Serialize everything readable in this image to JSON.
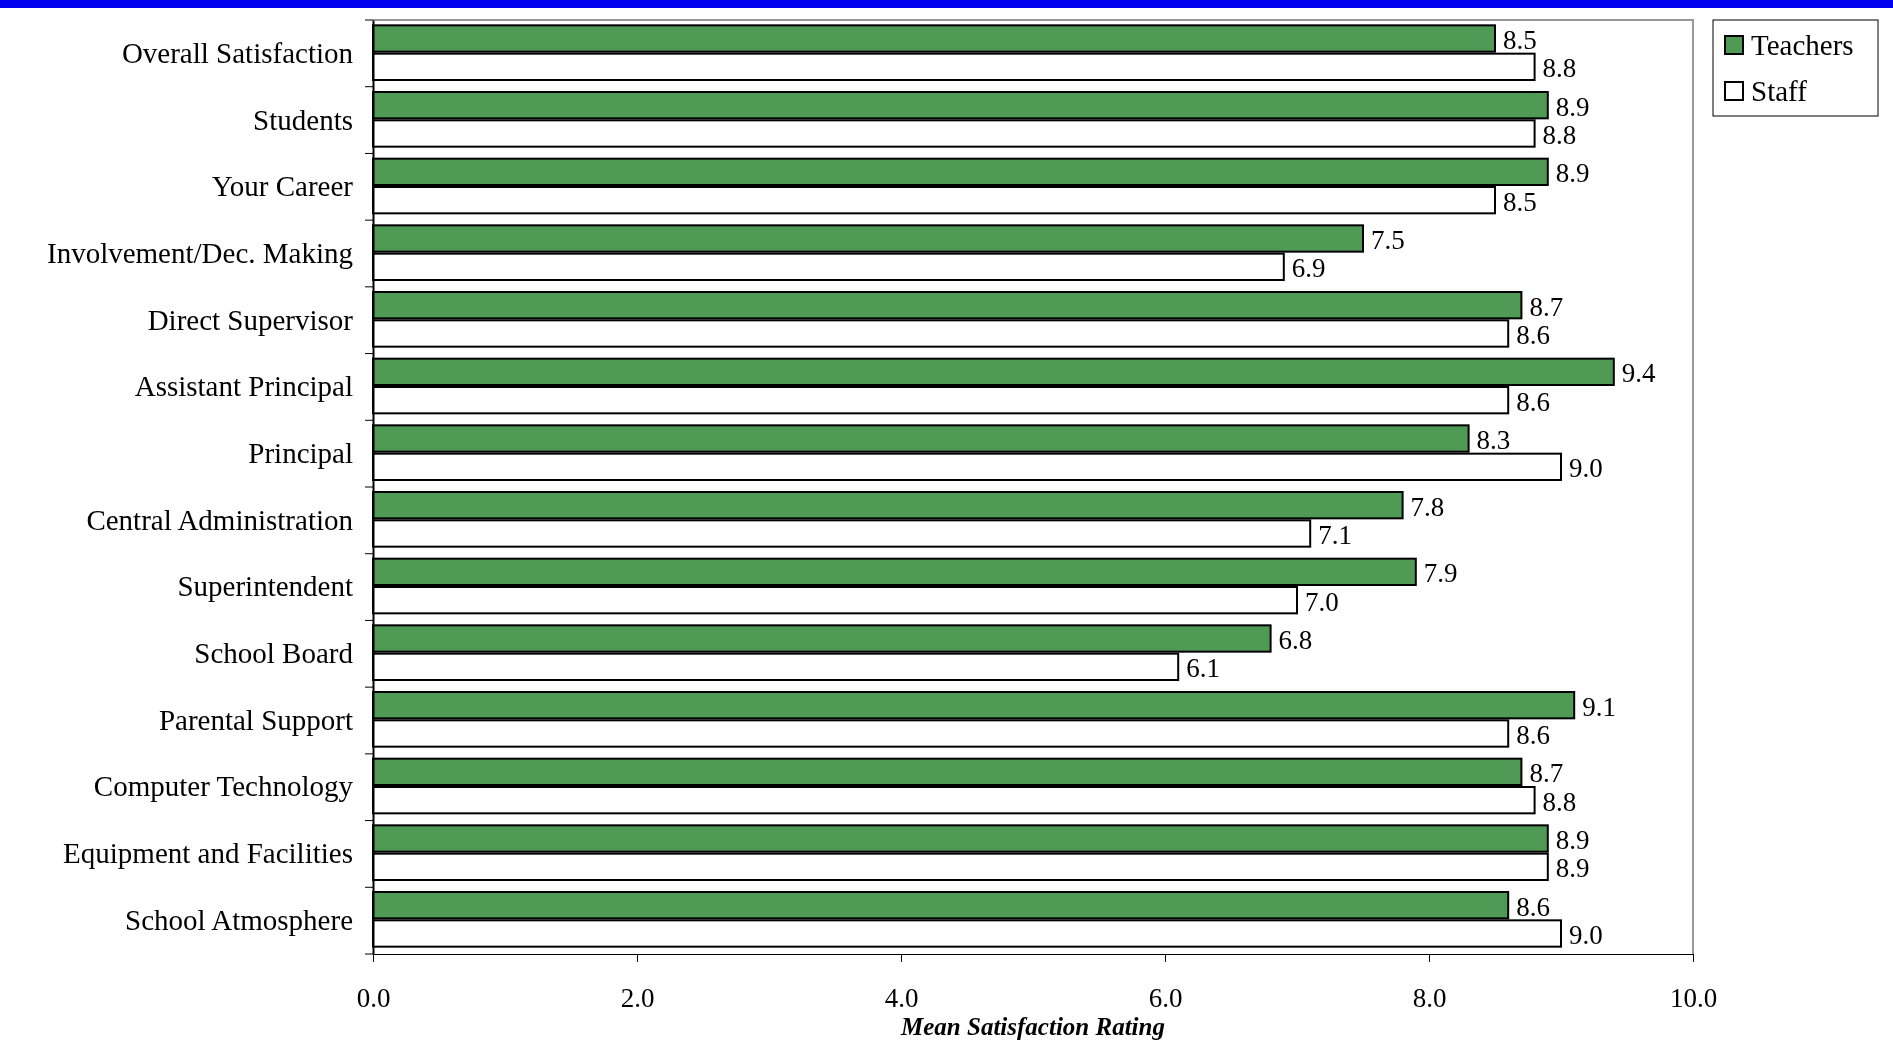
{
  "chart_data": {
    "type": "bar",
    "orientation": "horizontal",
    "xlabel": "Mean Satisfaction Rating",
    "categories": [
      "Overall Satisfaction",
      "Students",
      "Your Career",
      "Involvement/Dec. Making",
      "Direct Supervisor",
      "Assistant Principal",
      "Principal",
      "Central Administration",
      "Superintendent",
      "School  Board",
      "Parental Support",
      "Computer Technology",
      "Equipment and Facilities",
      "School Atmosphere"
    ],
    "series": [
      {
        "name": "Teachers",
        "color": "#4f9a55",
        "values": [
          8.5,
          8.9,
          8.9,
          7.5,
          8.7,
          9.4,
          8.3,
          7.8,
          7.9,
          6.8,
          9.1,
          8.7,
          8.9,
          8.6
        ],
        "value_labels": [
          "8.5",
          "8.9",
          "8.9",
          "7.5",
          "8.7",
          "9.4",
          "8.3",
          "7.8",
          "7.9",
          "6.8",
          "9.1",
          "8.7",
          "8.9",
          "8.6"
        ]
      },
      {
        "name": "Staff",
        "color": "#ffffff",
        "values": [
          8.8,
          8.8,
          8.5,
          6.9,
          8.6,
          8.6,
          9.0,
          7.1,
          7.0,
          6.1,
          8.6,
          8.8,
          8.9,
          9.0
        ],
        "value_labels": [
          "8.8",
          "8.8",
          "8.5",
          "6.9",
          "8.6",
          "8.6",
          "9.0",
          "7.1",
          "7.0",
          "6.1",
          "8.6",
          "8.8",
          "8.9",
          "9.0"
        ]
      }
    ],
    "xlim": [
      0,
      10
    ],
    "xticks": [
      {
        "value": 0,
        "label": "0.0"
      },
      {
        "value": 2,
        "label": "2.0"
      },
      {
        "value": 4,
        "label": "4.0"
      },
      {
        "value": 6,
        "label": "6.0"
      },
      {
        "value": 8,
        "label": "8.0"
      },
      {
        "value": 10,
        "label": "10.0"
      }
    ],
    "grid": false,
    "legend": "right"
  }
}
